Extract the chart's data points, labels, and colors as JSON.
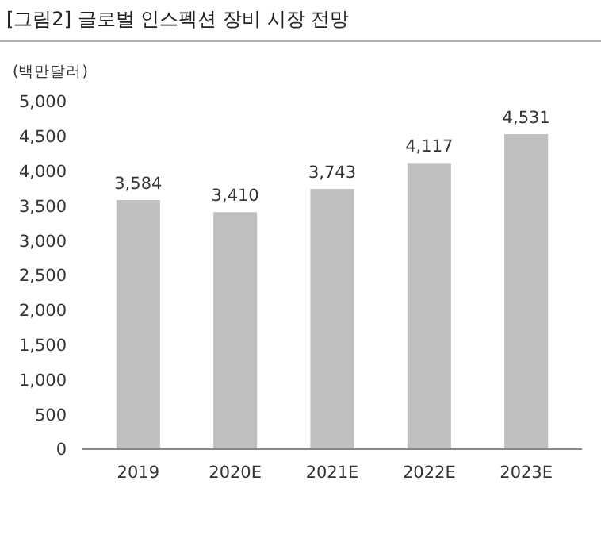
{
  "chart_data": {
    "type": "bar",
    "title": "[그림2]  글로벌 인스펙션 장비 시장 전망",
    "ylabel": "(백만달러)",
    "categories": [
      "2019",
      "2020E",
      "2021E",
      "2022E",
      "2023E"
    ],
    "values": [
      3584,
      3410,
      3743,
      4117,
      4531
    ],
    "color": "#bfbfbf",
    "value_labels": [
      "3,584",
      "3,410",
      "3,743",
      "4,117",
      "4,531"
    ],
    "ylim": [
      0,
      5000
    ],
    "yticks": [
      0,
      500,
      {
        "value": 1000,
        "label": "1,000"
      },
      {
        "value": 1500,
        "label": "1,500"
      },
      {
        "value": 2000,
        "label": "2,000"
      },
      {
        "value": 2500,
        "label": "2,500"
      },
      {
        "value": 3000,
        "label": "3,000"
      },
      {
        "value": 3500,
        "label": "3,500"
      },
      {
        "value": 4000,
        "label": "4,000"
      },
      {
        "value": 4500,
        "label": "4,500"
      },
      {
        "value": 5000,
        "label": "5,000"
      }
    ],
    "grid": false
  }
}
